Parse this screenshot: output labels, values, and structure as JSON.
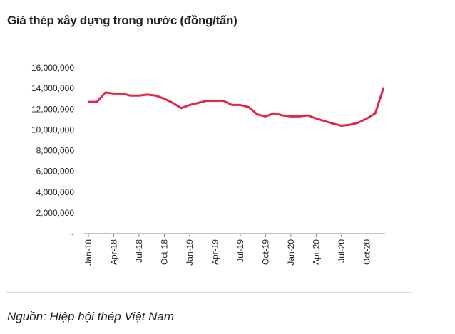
{
  "chart_data": {
    "type": "line",
    "title": "Giá thép xây dựng trong nước (đồng/tấn)",
    "source": "Nguồn: Hiệp hội thép Việt Nam",
    "categories": [
      "Jan-18",
      null,
      null,
      "Apr-18",
      null,
      null,
      "Jul-18",
      null,
      null,
      "Oct-18",
      null,
      null,
      "Jan-19",
      null,
      null,
      "Apr-19",
      null,
      null,
      "Jul-19",
      null,
      null,
      "Oct-19",
      null,
      null,
      "Jan-20",
      null,
      null,
      "Apr-20",
      null,
      null,
      "Jul-20",
      null,
      null,
      "Oct-20",
      null,
      null
    ],
    "series": [
      {
        "name": "Giá thép",
        "color": "#e0284a",
        "values": [
          12700000,
          12700000,
          13600000,
          13500000,
          13500000,
          13300000,
          13300000,
          13400000,
          13300000,
          13000000,
          12600000,
          12100000,
          12400000,
          12600000,
          12800000,
          12800000,
          12800000,
          12400000,
          12400000,
          12200000,
          11500000,
          11300000,
          11600000,
          11400000,
          11300000,
          11300000,
          11400000,
          11100000,
          10850000,
          10600000,
          10400000,
          10500000,
          10700000,
          11100000,
          11600000,
          14100000
        ]
      }
    ],
    "ylim": [
      0,
      16000000
    ],
    "yticks": [
      {
        "value": 0,
        "label": "-"
      },
      {
        "value": 2000000,
        "label": "2,000,000"
      },
      {
        "value": 4000000,
        "label": "4,000,000"
      },
      {
        "value": 6000000,
        "label": "6,000,000"
      },
      {
        "value": 8000000,
        "label": "8,000,000"
      },
      {
        "value": 10000000,
        "label": "10,000,000"
      },
      {
        "value": 12000000,
        "label": "12,000,000"
      },
      {
        "value": 14000000,
        "label": "14,000,000"
      },
      {
        "value": 16000000,
        "label": "16,000,000"
      }
    ],
    "grid": false
  }
}
